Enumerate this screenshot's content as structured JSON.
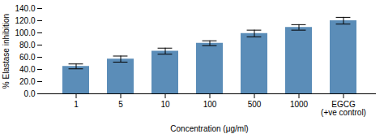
{
  "chart_data": {
    "type": "bar",
    "categories": [
      "1",
      "5",
      "10",
      "100",
      "500",
      "1000",
      "EGCG\n(+ve control)"
    ],
    "values": [
      45.0,
      57.0,
      70.0,
      83.0,
      99.0,
      109.0,
      120.0
    ],
    "errors": [
      4.0,
      5.0,
      5.0,
      4.0,
      5.5,
      4.5,
      5.5
    ],
    "color": "#5b8db8",
    "xlabel": "Concentration (μg/ml)",
    "ylabel": "% Elastase inhibition",
    "ylim": [
      0,
      140
    ],
    "yticks": [
      {
        "value": 0,
        "label": "0.0"
      },
      {
        "value": 20,
        "label": "20.0"
      },
      {
        "value": 40,
        "label": "40.0"
      },
      {
        "value": 60,
        "label": "60.0"
      },
      {
        "value": 80,
        "label": "80.0"
      },
      {
        "value": 100,
        "label": "100.0"
      },
      {
        "value": 120,
        "label": "120.0"
      },
      {
        "value": 140,
        "label": "140.0"
      }
    ],
    "grid": false
  }
}
